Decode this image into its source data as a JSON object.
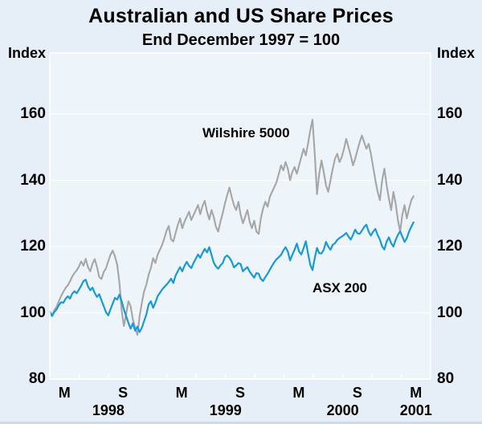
{
  "chart_data": {
    "type": "line",
    "title": "Australian and US Share Prices",
    "subtitle": "End December 1997 = 100",
    "colors": {
      "canvas_bg": "#e6eff8",
      "plot_bg": "#edf4fa",
      "grid": "#ffffff",
      "frame": "#ffffff",
      "text": "#000000",
      "bottom_edge": "#cdd9e5"
    },
    "y_axis": {
      "unit": "Index",
      "min": 80,
      "max": 178,
      "ticks": [
        80,
        100,
        120,
        140,
        160
      ],
      "labels_both_sides": true,
      "gridlines": true
    },
    "x_axis": {
      "start": "Jan 1998",
      "end": "Apr 2001",
      "total_months": 39,
      "tick_interval_months": 3,
      "month_labels": [
        {
          "label": "M",
          "center_month": 1.5
        },
        {
          "label": "S",
          "center_month": 7.5
        },
        {
          "label": "M",
          "center_month": 13.5
        },
        {
          "label": "S",
          "center_month": 19.5
        },
        {
          "label": "M",
          "center_month": 25.5
        },
        {
          "label": "S",
          "center_month": 31.5
        },
        {
          "label": "M",
          "center_month": 37.5
        }
      ],
      "year_labels": [
        {
          "label": "1998",
          "center_month": 6
        },
        {
          "label": "1999",
          "center_month": 18
        },
        {
          "label": "2000",
          "center_month": 30
        },
        {
          "label": "2001",
          "center_month": 37.5
        }
      ]
    },
    "series": [
      {
        "name": "Wilshire 5000",
        "color": "#a6a6a6",
        "line_width": 2.1,
        "interval": "weekly",
        "start_month": 0,
        "annotation": {
          "month": 20.1,
          "value": 154.3
        },
        "values": [
          100.3,
          99.2,
          100.8,
          101.8,
          103.5,
          105.0,
          106.3,
          107.5,
          108.3,
          109.5,
          111.0,
          112.0,
          112.8,
          114.0,
          115.5,
          114.2,
          116.3,
          113.8,
          112.5,
          114.8,
          116.2,
          113.9,
          110.8,
          110.2,
          112.3,
          113.4,
          115.5,
          117.5,
          118.8,
          117.0,
          114.5,
          109.0,
          100.8,
          96.0,
          99.5,
          103.5,
          102.0,
          98.0,
          95.5,
          93.3,
          99.0,
          103.0,
          106.5,
          108.5,
          111.5,
          113.5,
          116.5,
          115.0,
          117.5,
          119.0,
          120.5,
          122.5,
          124.8,
          126.2,
          122.2,
          121.5,
          124.0,
          126.5,
          128.5,
          125.5,
          127.5,
          129.0,
          130.5,
          128.0,
          129.5,
          131.0,
          132.5,
          129.8,
          132.3,
          133.8,
          130.5,
          128.2,
          131.0,
          129.0,
          126.0,
          124.5,
          127.5,
          130.0,
          133.0,
          135.5,
          137.8,
          135.0,
          132.5,
          131.0,
          133.5,
          129.5,
          127.0,
          129.0,
          131.0,
          127.5,
          125.5,
          127.8,
          124.5,
          123.8,
          128.5,
          131.5,
          133.5,
          132.0,
          135.0,
          136.5,
          138.0,
          139.5,
          142.0,
          144.5,
          143.0,
          145.5,
          143.5,
          140.0,
          142.5,
          144.0,
          142.0,
          144.5,
          147.0,
          149.5,
          147.5,
          151.0,
          155.0,
          158.3,
          148.0,
          135.8,
          142.0,
          146.0,
          142.5,
          138.5,
          136.5,
          140.0,
          143.5,
          146.5,
          148.0,
          145.5,
          147.0,
          149.5,
          152.5,
          150.0,
          147.5,
          144.5,
          146.5,
          149.0,
          151.5,
          153.5,
          151.5,
          149.5,
          151.0,
          148.0,
          144.0,
          140.0,
          136.5,
          134.0,
          140.0,
          143.5,
          138.5,
          134.5,
          131.0,
          136.5,
          133.0,
          128.0,
          124.5,
          129.5,
          132.5,
          128.5,
          131.5,
          134.0,
          135.2
        ]
      },
      {
        "name": "ASX 200",
        "color": "#189ad6",
        "line_width": 2.2,
        "interval": "weekly",
        "start_month": 0,
        "annotation": {
          "month": 29.7,
          "value": 107.3
        },
        "values": [
          100.4,
          99.0,
          100.2,
          101.0,
          102.3,
          103.2,
          103.0,
          104.2,
          105.0,
          104.3,
          105.8,
          106.5,
          105.9,
          107.0,
          108.2,
          109.6,
          110.0,
          108.0,
          106.8,
          107.6,
          106.0,
          104.8,
          105.6,
          103.8,
          102.0,
          100.2,
          99.2,
          101.0,
          102.8,
          104.5,
          104.0,
          105.5,
          103.5,
          101.0,
          99.0,
          97.0,
          95.2,
          96.8,
          94.6,
          95.8,
          94.2,
          95.5,
          97.5,
          99.5,
          102.5,
          103.5,
          101.5,
          103.0,
          105.0,
          106.0,
          107.0,
          107.8,
          108.5,
          109.3,
          110.3,
          109.0,
          111.2,
          112.5,
          113.8,
          112.5,
          114.2,
          115.4,
          114.2,
          113.5,
          115.0,
          116.3,
          117.6,
          116.6,
          118.1,
          119.3,
          118.2,
          119.8,
          117.5,
          115.2,
          114.0,
          113.3,
          114.3,
          115.0,
          116.8,
          117.3,
          116.6,
          115.5,
          113.7,
          114.3,
          115.0,
          114.7,
          112.5,
          113.2,
          113.8,
          112.4,
          111.5,
          110.6,
          112.0,
          111.8,
          110.2,
          109.6,
          110.8,
          111.8,
          113.0,
          114.2,
          115.3,
          116.2,
          116.8,
          117.5,
          118.8,
          119.8,
          118.5,
          115.8,
          117.5,
          119.0,
          120.9,
          118.5,
          117.6,
          119.5,
          121.6,
          118.0,
          114.5,
          112.9,
          116.5,
          119.6,
          118.0,
          117.9,
          119.0,
          121.4,
          120.0,
          119.0,
          120.5,
          121.0,
          122.0,
          122.6,
          123.0,
          123.5,
          124.1,
          123.0,
          122.1,
          123.5,
          125.1,
          124.0,
          123.8,
          124.8,
          125.9,
          126.6,
          124.5,
          123.3,
          124.5,
          125.3,
          123.5,
          122.1,
          120.0,
          119.1,
          121.5,
          122.8,
          121.0,
          120.0,
          122.0,
          123.5,
          124.6,
          123.0,
          121.4,
          122.5,
          124.5,
          126.0,
          127.3
        ]
      }
    ]
  }
}
